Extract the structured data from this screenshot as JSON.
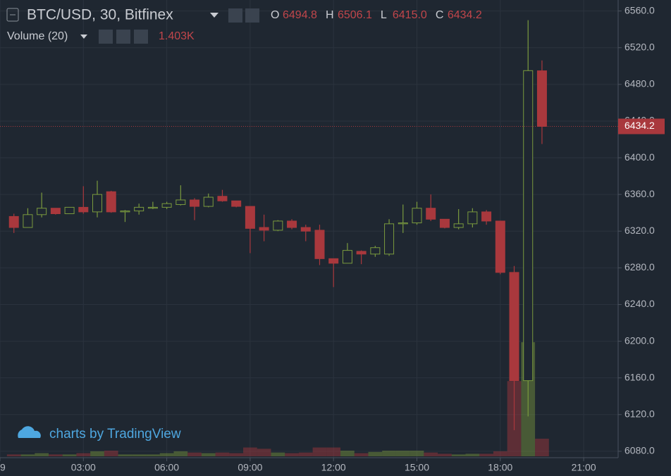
{
  "chart_data": {
    "type": "candlestick",
    "title": "BTC/USD, 30, Bitfinex",
    "legend_keys": [
      "O",
      "H",
      "L",
      "C"
    ],
    "legend_values": [
      "6494.8",
      "6506.1",
      "6415.0",
      "6434.2"
    ],
    "x": [
      0.5,
      1,
      1.5,
      2,
      2.5,
      3,
      3.5,
      4,
      4.5,
      5,
      5.5,
      6,
      6.5,
      7,
      7.5,
      8,
      8.5,
      9,
      9.5,
      10,
      10.5,
      11,
      11.5,
      12,
      12.5,
      13,
      13.5,
      14,
      14.5,
      15,
      15.5,
      16,
      16.5,
      17,
      17.5,
      18,
      18.5,
      19,
      19.5
    ],
    "open": [
      6336,
      6324,
      6338,
      6345,
      6339,
      6346,
      6341,
      6363,
      6341,
      6342,
      6345,
      6346,
      6349,
      6354,
      6347,
      6358,
      6353,
      6347,
      6324,
      6321,
      6331,
      6324,
      6321,
      6290,
      6285,
      6298,
      6295,
      6295,
      6328,
      6329,
      6345,
      6333,
      6324,
      6328,
      6341,
      6331,
      6275,
      6157,
      6494.8
    ],
    "high": [
      6339,
      6345,
      6362,
      6345,
      6346,
      6369,
      6375,
      6364,
      6343,
      6350,
      6352,
      6352,
      6370,
      6356,
      6361,
      6365,
      6353,
      6347,
      6338,
      6332,
      6333,
      6327,
      6327,
      6290,
      6307,
      6299,
      6304,
      6333,
      6349,
      6352,
      6360,
      6333,
      6344,
      6345,
      6343,
      6331,
      6282,
      6550,
      6506.1
    ],
    "low": [
      6318,
      6324,
      6335,
      6338,
      6339,
      6339,
      6335,
      6340,
      6330,
      6338,
      6344,
      6344,
      6348,
      6332,
      6346,
      6352,
      6346,
      6296,
      6309,
      6320,
      6322,
      6309,
      6283,
      6259,
      6285,
      6284,
      6292,
      6293,
      6318,
      6327,
      6331,
      6323,
      6322,
      6324,
      6327,
      6273,
      6103,
      6118,
      6415
    ],
    "close": [
      6324,
      6338,
      6345,
      6339,
      6346,
      6341,
      6360,
      6341,
      6342,
      6346,
      6346,
      6350,
      6354,
      6347,
      6357,
      6353,
      6347,
      6323,
      6321,
      6331,
      6324,
      6320,
      6290,
      6285,
      6299,
      6295,
      6302,
      6328,
      6329,
      6345,
      6333,
      6324,
      6328,
      6341,
      6331,
      6275,
      6157,
      6495,
      6434.2
    ],
    "up_color": "#7a9a3e",
    "down_color": "#a9383d",
    "volume": {
      "name": "Volume (20)",
      "last_label": "1.403K",
      "values": [
        150,
        150,
        250,
        150,
        150,
        250,
        400,
        450,
        150,
        150,
        150,
        250,
        400,
        300,
        250,
        300,
        250,
        700,
        600,
        300,
        250,
        300,
        700,
        700,
        450,
        250,
        350,
        450,
        450,
        450,
        300,
        200,
        150,
        200,
        200,
        400,
        6000,
        9100,
        1403
      ]
    },
    "xlim": [
      0,
      22.24
    ],
    "xticks": [
      {
        "value": 0,
        "label": "9"
      },
      {
        "value": 3,
        "label": "03:00"
      },
      {
        "value": 6,
        "label": "06:00"
      },
      {
        "value": 9,
        "label": "09:00"
      },
      {
        "value": 12,
        "label": "12:00"
      },
      {
        "value": 15,
        "label": "15:00"
      },
      {
        "value": 18,
        "label": "18:00"
      },
      {
        "value": 21,
        "label": "21:00"
      }
    ],
    "ylim": [
      6073,
      6572
    ],
    "yticks": [
      {
        "value": 6080,
        "label": "6080.0"
      },
      {
        "value": 6120,
        "label": "6120.0"
      },
      {
        "value": 6160,
        "label": "6160.0"
      },
      {
        "value": 6200,
        "label": "6200.0"
      },
      {
        "value": 6240,
        "label": "6240.0"
      },
      {
        "value": 6280,
        "label": "6280.0"
      },
      {
        "value": 6320,
        "label": "6320.0"
      },
      {
        "value": 6360,
        "label": "6360.0"
      },
      {
        "value": 6400,
        "label": "6400.0"
      },
      {
        "value": 6440,
        "label": "6440.0"
      },
      {
        "value": 6480,
        "label": "6480.0"
      },
      {
        "value": 6520,
        "label": "6520.0"
      },
      {
        "value": 6560,
        "label": "6560.0"
      }
    ],
    "grid": true
  },
  "branding": "charts by TradingView"
}
